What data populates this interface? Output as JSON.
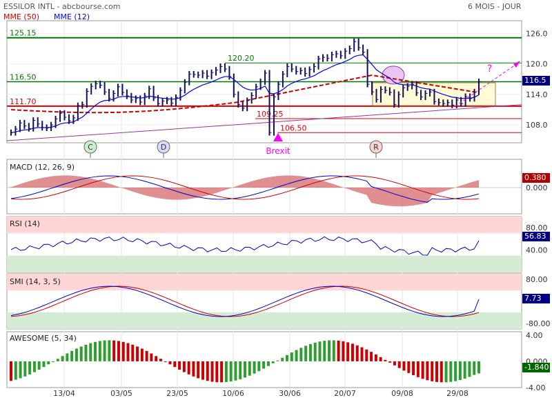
{
  "header": {
    "left": "ESSILOR INTL - abcbourse.com",
    "right": "6 MOIS - JOUR"
  },
  "legend": {
    "mme50": "MME (50)",
    "mme12": "MME (12)"
  },
  "colors": {
    "price": "#0f0f5e",
    "mme12": "#0000ee",
    "mme50": "#c80000",
    "green_line": "#007700",
    "red_line": "#dd0000",
    "trend": "#993399",
    "magenta": "#ff00ff",
    "rsi_upper": "#ffd6d6",
    "rsi_lower": "#d4ecd4",
    "macd_hist": "#d46a6a",
    "awesome_up": "#2e9e2e",
    "awesome_down": "#cc0000",
    "tag_blue": "#000080",
    "tag_red": "#b20000",
    "tag_green": "#006400"
  },
  "price_panel": {
    "yticks": [
      "126.0",
      "120.0",
      "114.0",
      "108.0"
    ],
    "level_labels": {
      "l125": "125.15",
      "l120": "120.20",
      "l116": "116.50",
      "l111": "111.70",
      "l109": "109.25",
      "l106": "106.50"
    },
    "events": [
      "C",
      "D",
      "R"
    ],
    "brexit": "Brexit",
    "question": "?",
    "last_value": "116.5"
  },
  "macd_panel": {
    "title": "MACD (12, 26, 9)",
    "yticks": [
      "0.000"
    ],
    "last_value": "0.380"
  },
  "rsi_panel": {
    "title": "RSI (14)",
    "yticks": [
      "80.00",
      "40.00"
    ],
    "last_value": "56.83"
  },
  "smi_panel": {
    "title": "SMI (14, 3, 5)",
    "yticks": [
      "80.00",
      "-80.00"
    ],
    "last_value": "7.73"
  },
  "awesome_panel": {
    "title": "AWESOME (5, 34)",
    "yticks": [
      "4.00",
      "0.000",
      "-4.00"
    ],
    "last_value": "-1.840"
  },
  "xaxis": {
    "labels": [
      "13/04",
      "03/05",
      "23/05",
      "10/06",
      "30/06",
      "20/07",
      "09/08",
      "29/08"
    ]
  },
  "chart_data": {
    "type": "line",
    "title": "ESSILOR INTL",
    "price_range": [
      104.5,
      128.5
    ],
    "price_close": [
      106.5,
      107.2,
      108.4,
      107.8,
      107.3,
      108.9,
      108.2,
      107.5,
      107.4,
      108.0,
      109.2,
      110.3,
      109.5,
      108.8,
      109.4,
      111.8,
      112.0,
      114.6,
      115.6,
      116.1,
      115.8,
      114.5,
      113.2,
      114.2,
      115.5,
      114.4,
      113.7,
      112.9,
      113.2,
      112.5,
      113.7,
      115.1,
      113.3,
      112.2,
      112.7,
      112.9,
      112.3,
      113.4,
      114.8,
      116.4,
      118.0,
      117.9,
      117.8,
      118.2,
      117.6,
      118.3,
      118.8,
      119.5,
      119.0,
      117.5,
      114.0,
      112.0,
      111.3,
      112.8,
      113.8,
      115.5,
      116.5,
      118.2,
      106.5,
      113.5,
      116.0,
      118.0,
      119.5,
      119.0,
      118.5,
      118.7,
      118.1,
      118.9,
      119.5,
      121.0,
      121.3,
      121.1,
      121.8,
      122.0,
      121.6,
      122.5,
      123.0,
      124.4,
      123.2,
      122.3,
      116.0,
      114.5,
      113.0,
      115.0,
      114.8,
      114.4,
      112.0,
      114.0,
      115.3,
      115.6,
      116.0,
      114.3,
      113.5,
      114.2,
      114.5,
      112.6,
      112.4,
      112.2,
      112.4,
      111.9,
      112.9,
      112.2,
      113.6,
      113.2,
      114.5,
      116.5
    ],
    "mme50_range": [
      108.5,
      117.8
    ],
    "levels": [
      125.15,
      120.2,
      116.5,
      111.7,
      109.25,
      106.5
    ],
    "rsi_last": 56.83,
    "smi_last": 7.73,
    "macd_last": 0.38,
    "awesome_last": -1.84,
    "awesome_range": [
      -4.0,
      4.5
    ]
  }
}
